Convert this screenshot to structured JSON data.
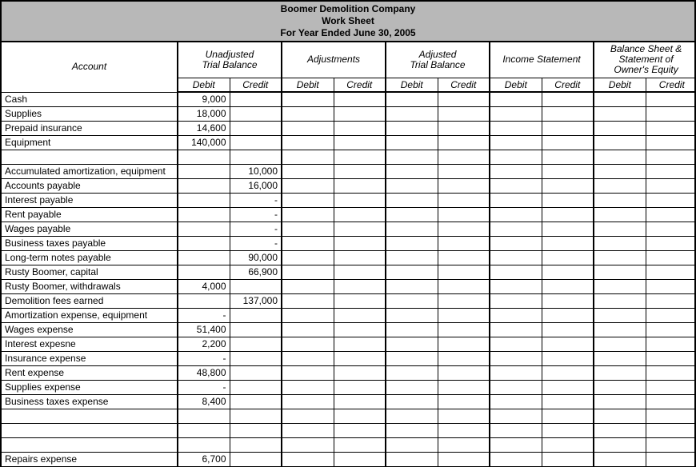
{
  "header": {
    "background": "#b8b8b8",
    "line1": "Boomer Demolition Company",
    "line2": "Work Sheet",
    "line3": "For Year Ended June 30, 2005"
  },
  "columns": {
    "account_label": "Account",
    "groups": [
      "Unadjusted Trial Balance",
      "Adjustments",
      "Adjusted Trial Balance",
      "Income Statement",
      "Balance Sheet & Statement of Owner's Equity"
    ],
    "debit_label": "Debit",
    "credit_label": "Credit"
  },
  "rows": [
    {
      "acct": "Cash",
      "utb_d": "9,000"
    },
    {
      "acct": "Supplies",
      "utb_d": "18,000"
    },
    {
      "acct": "Prepaid insurance",
      "utb_d": "14,600"
    },
    {
      "acct": "Equipment",
      "utb_d": "140,000"
    },
    {
      "acct": ""
    },
    {
      "acct": "Accumulated amortization, equipment",
      "utb_c": "10,000"
    },
    {
      "acct": "Accounts payable",
      "utb_c": "16,000"
    },
    {
      "acct": "Interest payable",
      "utb_c": "-"
    },
    {
      "acct": "Rent payable",
      "utb_c": "-"
    },
    {
      "acct": "Wages payable",
      "utb_c": "-"
    },
    {
      "acct": "Business taxes payable",
      "utb_c": "-"
    },
    {
      "acct": "Long-term notes payable",
      "utb_c": "90,000"
    },
    {
      "acct": "Rusty Boomer, capital",
      "utb_c": "66,900"
    },
    {
      "acct": "Rusty Boomer, withdrawals",
      "utb_d": "4,000"
    },
    {
      "acct": "Demolition fees earned",
      "utb_c": "137,000"
    },
    {
      "acct": "Amortization expense, equipment",
      "utb_d": "-"
    },
    {
      "acct": "Wages expense",
      "utb_d": "51,400"
    },
    {
      "acct": "Interest expesne",
      "utb_d": "2,200"
    },
    {
      "acct": "Insurance expense",
      "utb_d": "-"
    },
    {
      "acct": "Rent expense",
      "utb_d": "48,800"
    },
    {
      "acct": "Supplies expense",
      "utb_d": "-"
    },
    {
      "acct": "Business taxes expense",
      "utb_d": "8,400"
    },
    {
      "acct": ""
    },
    {
      "acct": ""
    },
    {
      "acct": ""
    },
    {
      "acct": "Repairs expense",
      "utb_d": "6,700"
    }
  ]
}
